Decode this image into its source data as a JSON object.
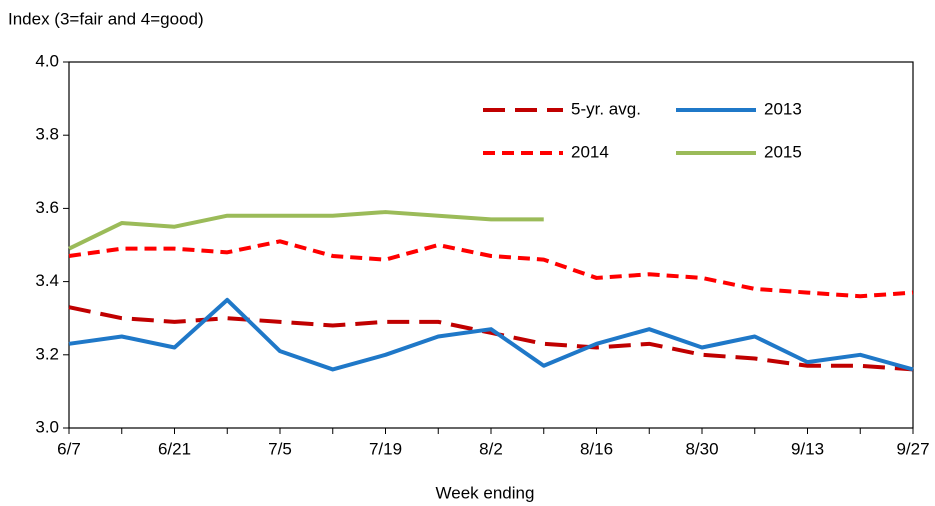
{
  "chart_data": {
    "type": "line",
    "y_label": "Index (3=fair and 4=good)",
    "x_label": "Week ending",
    "categories": [
      "6/7",
      null,
      "6/21",
      null,
      "7/5",
      null,
      "7/19",
      null,
      "8/2",
      null,
      "8/16",
      null,
      "8/30",
      null,
      "9/13",
      null,
      "9/27"
    ],
    "series": [
      {
        "name": "5-yr. avg.",
        "color": "#c00000",
        "dash": "long",
        "values": [
          3.33,
          3.3,
          3.29,
          3.3,
          3.29,
          3.28,
          3.29,
          3.29,
          3.26,
          3.23,
          3.22,
          3.23,
          3.2,
          3.19,
          3.17,
          3.17,
          3.16
        ]
      },
      {
        "name": "2013",
        "color": "#1f78c8",
        "dash": "solid",
        "values": [
          3.23,
          3.25,
          3.22,
          3.35,
          3.21,
          3.16,
          3.2,
          3.25,
          3.27,
          3.17,
          3.23,
          3.27,
          3.22,
          3.25,
          3.18,
          3.2,
          3.16
        ]
      },
      {
        "name": "2014",
        "color": "#ff0000",
        "dash": "short",
        "values": [
          3.47,
          3.49,
          3.49,
          3.48,
          3.51,
          3.47,
          3.46,
          3.5,
          3.47,
          3.46,
          3.41,
          3.42,
          3.41,
          3.38,
          3.37,
          3.36,
          3.37
        ]
      },
      {
        "name": "2015",
        "color": "#9bbb59",
        "dash": "solid",
        "values": [
          3.49,
          3.56,
          3.55,
          3.58,
          3.58,
          3.58,
          3.59,
          3.58,
          3.57,
          3.57,
          null,
          null,
          null,
          null,
          null,
          null,
          null
        ]
      }
    ],
    "ylim": [
      3.0,
      4.0
    ],
    "yticks": [
      {
        "value": 3.0,
        "label": "3.0"
      },
      3.2,
      3.4,
      3.6,
      3.8,
      {
        "value": 4.0,
        "label": "4.0"
      }
    ],
    "legend": "upper right",
    "grid": false
  }
}
